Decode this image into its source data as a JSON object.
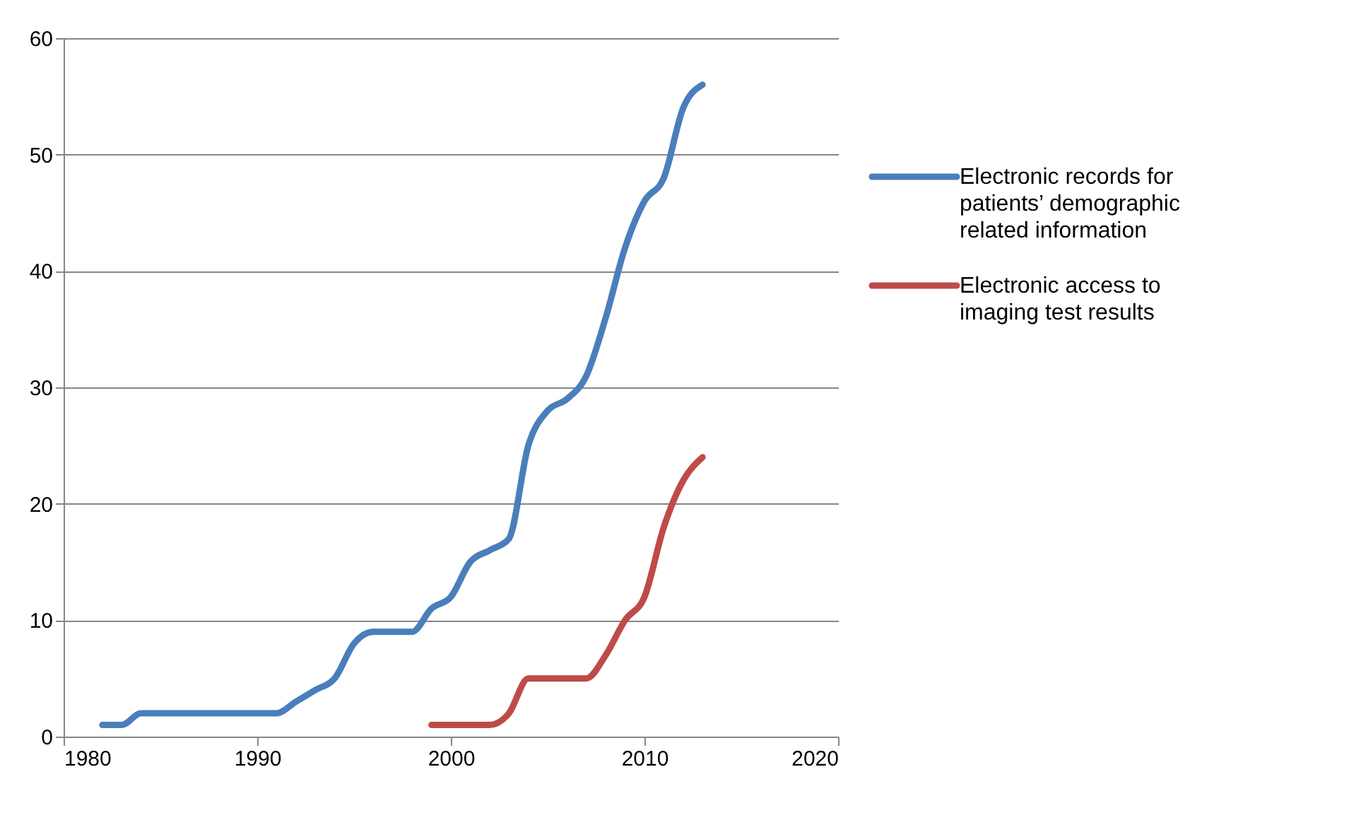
{
  "chart_data": {
    "type": "line",
    "xlim": [
      1980,
      2020
    ],
    "xticks": [
      1980,
      1990,
      2000,
      2010,
      2020
    ],
    "ylim": [
      0,
      60
    ],
    "yticks": [
      0,
      10,
      20,
      30,
      40,
      50,
      60
    ],
    "grid": "y",
    "legend": "right",
    "marker": "none",
    "line_style": "solid",
    "series": [
      {
        "name": "Electronic records for patients’ demographic related information",
        "color": "#4a7ebb",
        "x": [
          1982,
          1983,
          1984,
          1985,
          1986,
          1987,
          1988,
          1989,
          1990,
          1991,
          1992,
          1993,
          1994,
          1995,
          1996,
          1997,
          1998,
          1999,
          2000,
          2001,
          2002,
          2003,
          2004,
          2005,
          2006,
          2007,
          2008,
          2009,
          2010,
          2011,
          2012,
          2013
        ],
        "values": [
          1,
          1,
          2,
          2,
          2,
          2,
          2,
          2,
          2,
          2,
          3,
          4,
          5,
          8,
          9,
          9,
          9,
          11,
          12,
          15,
          16,
          17,
          25,
          28,
          29,
          31,
          36,
          42,
          46,
          48,
          54,
          56
        ]
      },
      {
        "name": "Electronic access to imaging test results",
        "color": "#be4b48",
        "x": [
          1999,
          2000,
          2001,
          2002,
          2003,
          2004,
          2005,
          2006,
          2007,
          2008,
          2009,
          2010,
          2011,
          2012,
          2013
        ],
        "values": [
          1,
          1,
          1,
          1,
          2,
          5,
          5,
          5,
          5,
          7,
          10,
          12,
          18,
          22,
          24
        ]
      }
    ]
  }
}
